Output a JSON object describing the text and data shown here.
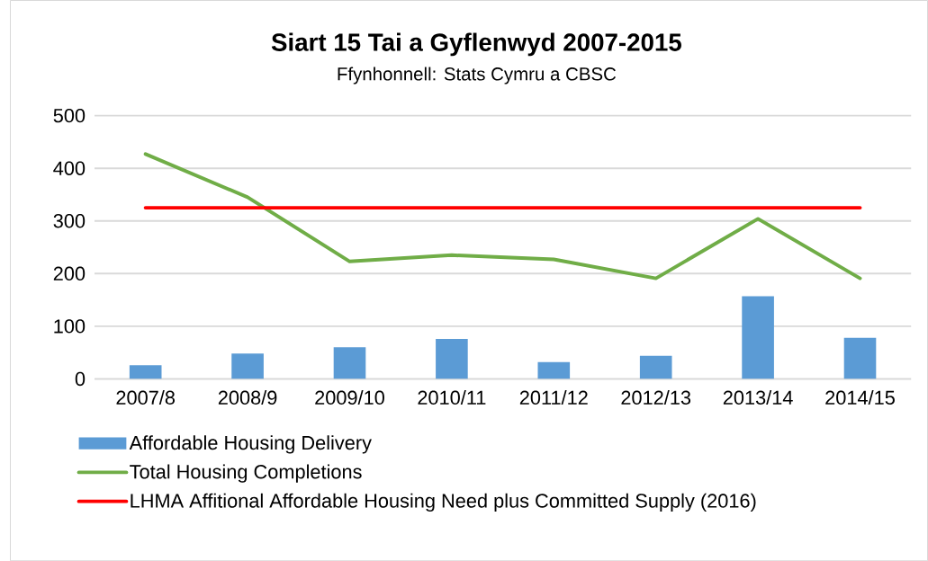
{
  "chart_data": {
    "type": "bar",
    "title": "Siart 15 Tai a Gyflenwyd 2007-2015",
    "subtitle": "Ffynhonnell: Stats Cymru a CBSC",
    "categories": [
      "2007/8",
      "2008/9",
      "2009/10",
      "2010/11",
      "2011/12",
      "2012/13",
      "2013/14",
      "2014/15"
    ],
    "series": [
      {
        "name": "Affordable Housing Delivery",
        "color": "#5b9bd5",
        "values": [
          26,
          48,
          60,
          76,
          32,
          44,
          157,
          78
        ]
      },
      {
        "name": "Total Housing Completions",
        "type": "line",
        "color": "#70ad47",
        "values": [
          427,
          345,
          223,
          235,
          227,
          191,
          304,
          191
        ]
      },
      {
        "name": "LHMA Affitional Affordable Housing Need plus Committed Supply (2016)",
        "type": "line",
        "color": "#ff0000",
        "values": [
          325,
          325,
          325,
          325,
          325,
          325,
          325,
          325
        ]
      }
    ],
    "ylim": [
      0,
      500
    ],
    "yticks": [
      0,
      100,
      200,
      300,
      400,
      500
    ],
    "grid": "y",
    "legend": "bottom",
    "marker": "none",
    "line_style": "solid"
  }
}
